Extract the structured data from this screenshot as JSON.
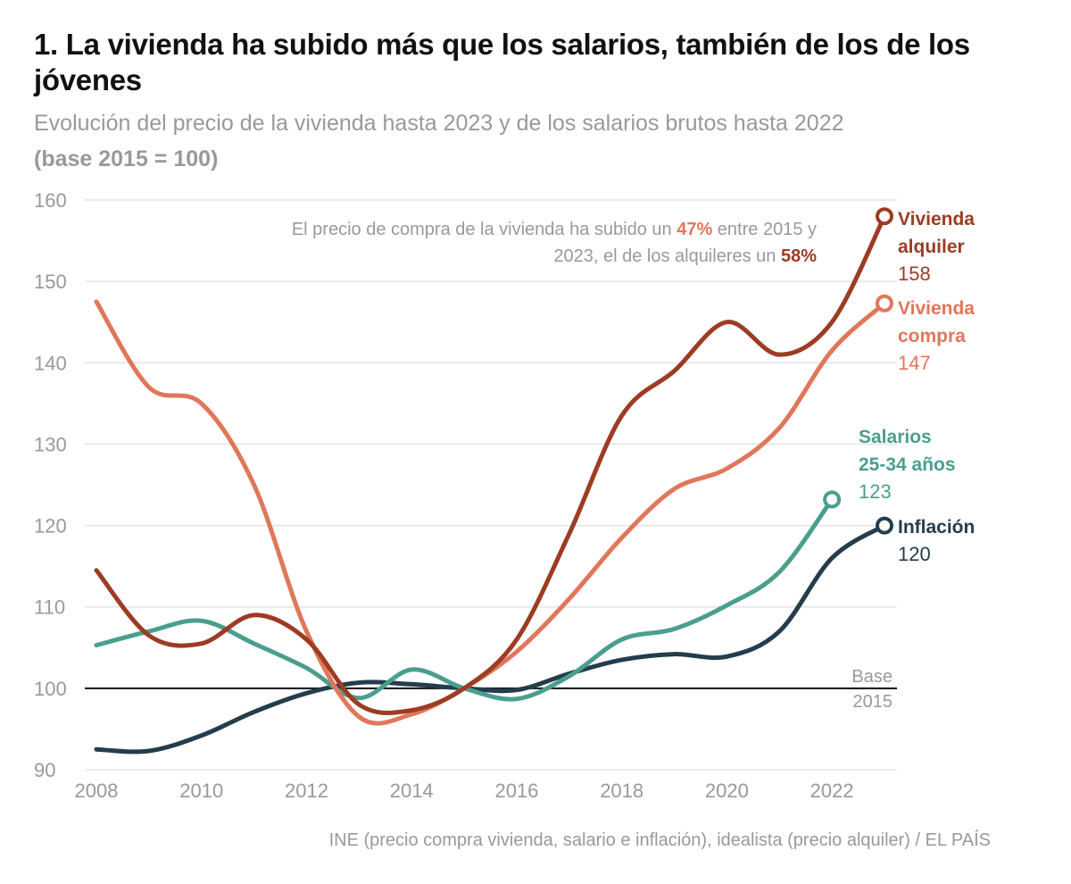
{
  "title": "1. La vivienda ha subido más que los salarios, también de los de los jóvenes",
  "subtitle": "Evolución del precio de la vivienda hasta 2023 y de los salarios brutos hasta 2022",
  "subtitle_bold": "(base 2015 = 100)",
  "source": "INE (precio compra vivienda, salario e inflación), idealista (precio alquiler) / EL PAÍS",
  "chart_data": {
    "type": "line",
    "xlim": [
      2008,
      2023
    ],
    "ylim": [
      90,
      160
    ],
    "yticks": [
      90,
      100,
      110,
      120,
      130,
      140,
      150,
      160
    ],
    "xticks": [
      2008,
      2010,
      2012,
      2014,
      2016,
      2018,
      2020,
      2022
    ],
    "grid": true,
    "baseline": {
      "value": 100,
      "label_line1": "Base",
      "label_line2": "2015"
    },
    "annotation": {
      "line1_pre": "El precio de compra de la vivienda ha subido un ",
      "line1_hl": "47%",
      "line1_post": " entre 2015 y",
      "line2_pre": "2023, el de los alquileres un ",
      "line2_hl": "58%"
    },
    "series": [
      {
        "name": "Vivienda alquiler",
        "label_line1": "Vivienda",
        "label_line2": "alquiler",
        "end_label": "158",
        "color": "#9c3c23",
        "x": [
          2008,
          2009,
          2010,
          2011,
          2012,
          2013,
          2014,
          2015,
          2016,
          2017,
          2018,
          2019,
          2020,
          2021,
          2022,
          2023
        ],
        "y": [
          114.5,
          106.5,
          105.5,
          109,
          106,
          98,
          97.3,
          100,
          106,
          119,
          133.5,
          139,
          145,
          141,
          145,
          158
        ]
      },
      {
        "name": "Vivienda compra",
        "label_line1": "Vivienda",
        "label_line2": "compra",
        "end_label": "147",
        "color": "#e0775a",
        "x": [
          2008,
          2009,
          2010,
          2011,
          2012,
          2013,
          2014,
          2015,
          2016,
          2017,
          2018,
          2019,
          2020,
          2021,
          2022,
          2023
        ],
        "y": [
          147.5,
          137,
          135,
          125,
          107,
          96.5,
          96.8,
          100,
          104.5,
          111,
          118.5,
          124.5,
          127,
          132,
          141.5,
          147.3
        ]
      },
      {
        "name": "Salarios 25-34 años",
        "label_line1": "Salarios",
        "label_line2": "25-34 años",
        "end_label": "123",
        "color": "#4a9e8e",
        "x": [
          2008,
          2009,
          2010,
          2011,
          2012,
          2013,
          2014,
          2015,
          2016,
          2017,
          2018,
          2019,
          2020,
          2021,
          2022
        ],
        "y": [
          105.3,
          107,
          108.3,
          105.5,
          102.5,
          98.8,
          102.3,
          100,
          98.7,
          101.5,
          106,
          107.3,
          110.2,
          114.3,
          123.2
        ]
      },
      {
        "name": "Inflación",
        "label_line1": "Inflación",
        "label_line2": "",
        "end_label": "120",
        "color": "#243d4c",
        "x": [
          2008,
          2009,
          2010,
          2011,
          2012,
          2013,
          2014,
          2015,
          2016,
          2017,
          2018,
          2019,
          2020,
          2021,
          2022,
          2023
        ],
        "y": [
          92.5,
          92.3,
          94.2,
          97.1,
          99.4,
          100.7,
          100.5,
          100,
          99.8,
          101.8,
          103.5,
          104.2,
          103.9,
          107,
          116,
          120
        ]
      }
    ]
  }
}
